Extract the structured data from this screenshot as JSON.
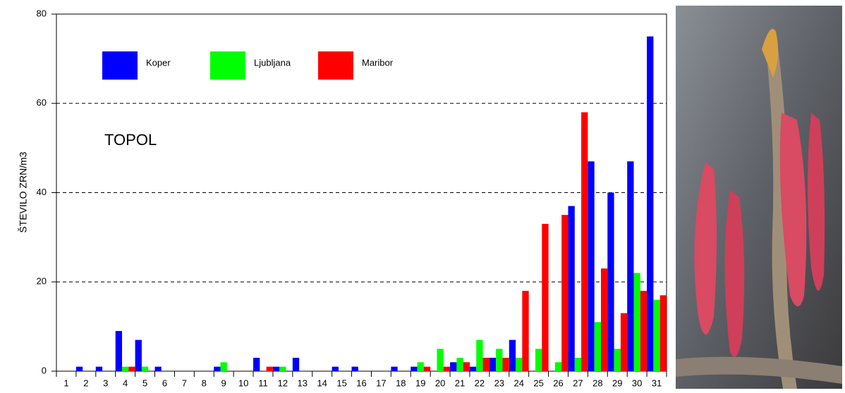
{
  "chart_data": {
    "type": "bar",
    "title": "TOPOL",
    "y_label": "ŠTEVILO ZRN/m3",
    "categories": [
      "1",
      "2",
      "3",
      "4",
      "5",
      "6",
      "7",
      "8",
      "9",
      "10",
      "11",
      "12",
      "13",
      "14",
      "15",
      "16",
      "17",
      "18",
      "19",
      "20",
      "21",
      "22",
      "23",
      "24",
      "25",
      "26",
      "27",
      "28",
      "29",
      "30",
      "31"
    ],
    "series": [
      {
        "name": "Koper",
        "color": "#0000ff",
        "values": [
          0,
          1,
          1,
          9,
          7,
          1,
          0,
          0,
          1,
          0,
          3,
          1,
          3,
          0,
          1,
          1,
          0,
          1,
          1,
          0,
          2,
          1,
          3,
          7,
          0,
          0,
          37,
          47,
          40,
          47,
          75
        ]
      },
      {
        "name": "Ljubljana",
        "color": "#00ff00",
        "values": [
          0,
          0,
          0,
          1,
          1,
          0,
          0,
          0,
          2,
          0,
          0,
          1,
          0,
          0,
          0,
          0,
          0,
          0,
          2,
          5,
          3,
          7,
          5,
          3,
          5,
          2,
          3,
          11,
          5,
          22,
          16
        ]
      },
      {
        "name": "Maribor",
        "color": "#ff0000",
        "values": [
          0,
          0,
          0,
          1,
          0,
          0,
          0,
          0,
          0,
          0,
          1,
          0,
          0,
          0,
          0,
          0,
          0,
          0,
          1,
          1,
          2,
          3,
          3,
          18,
          33,
          35,
          58,
          23,
          13,
          18,
          17
        ]
      }
    ],
    "ylim": [
      0,
      80
    ],
    "yticks": [
      0,
      20,
      40,
      60,
      80
    ],
    "grid": true
  }
}
